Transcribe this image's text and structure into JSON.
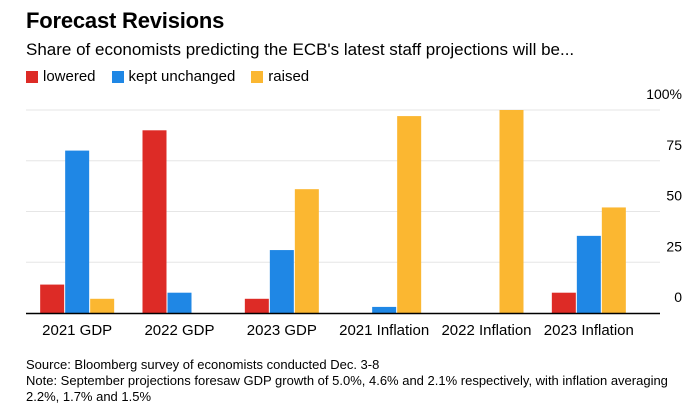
{
  "title": "Forecast Revisions",
  "subtitle": "Share of economists predicting the ECB's latest staff projections will be...",
  "source": "Source: Bloomberg survey of economists conducted Dec. 3-8",
  "note": "Note: September projections foresaw GDP growth of 5.0%, 4.6% and 2.1% respectively, with inflation averaging 2.2%, 1.7% and 1.5%",
  "colors": {
    "lowered": "#dd2b26",
    "kept_unchanged": "#1f87e5",
    "raised": "#fbb731",
    "axis": "#000000",
    "grid": "#e6e6e6"
  },
  "chart_data": {
    "type": "bar",
    "title": "Forecast Revisions",
    "subtitle": "Share of economists predicting the ECB's latest staff projections will be...",
    "categories": [
      "2021 GDP",
      "2022 GDP",
      "2023 GDP",
      "2021 Inflation",
      "2022 Inflation",
      "2023 Inflation"
    ],
    "series": [
      {
        "name": "lowered",
        "color": "#dd2b26",
        "values": [
          14,
          90,
          7,
          0,
          0,
          10
        ]
      },
      {
        "name": "kept unchanged",
        "color": "#1f87e5",
        "values": [
          80,
          10,
          31,
          3,
          0,
          38
        ]
      },
      {
        "name": "raised",
        "color": "#fbb731",
        "values": [
          7,
          0,
          61,
          97,
          100,
          52
        ]
      }
    ],
    "ylim": [
      0,
      100
    ],
    "yticks": [
      0,
      25,
      50,
      75,
      100
    ],
    "ytick_labels": [
      "0",
      "25",
      "50",
      "75",
      "100%"
    ],
    "grid": true,
    "legend_position": "top-left",
    "xlabel": "",
    "ylabel": ""
  }
}
